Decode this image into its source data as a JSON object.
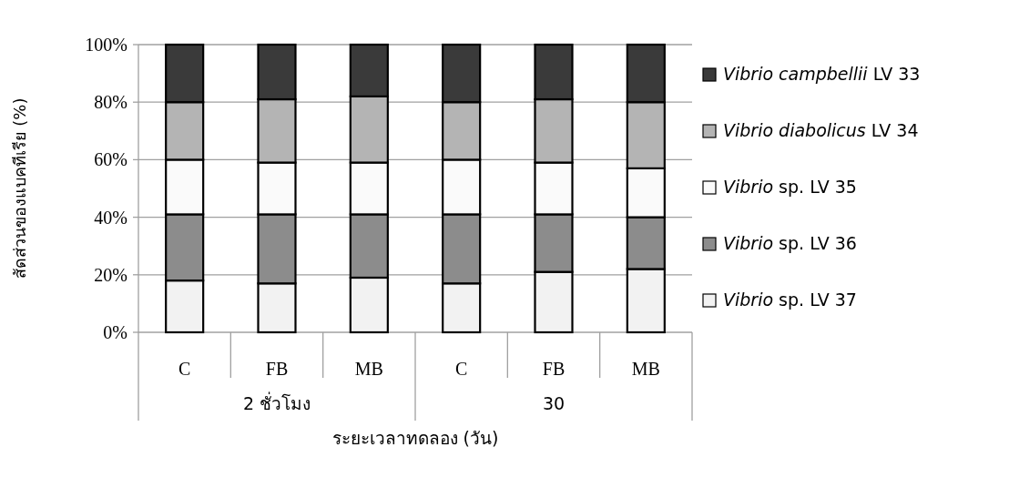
{
  "chart_data": {
    "type": "bar",
    "stacked": true,
    "ylabel": "สัดส่วนของแบคทีเรีย (%)",
    "xlabel": "ระยะเวลาทดลอง (วัน)",
    "categories": [
      "C",
      "FB",
      "MB",
      "C",
      "FB",
      "MB"
    ],
    "annotations": [
      "2 ชั่วโมง",
      "30"
    ],
    "ylim": [
      0,
      100
    ],
    "yticks": [
      {
        "value": 0,
        "label": "0%"
      },
      {
        "value": 20,
        "label": "20%"
      },
      {
        "value": 40,
        "label": "40%"
      },
      {
        "value": 60,
        "label": "60%"
      },
      {
        "value": 80,
        "label": "80%"
      },
      {
        "value": 100,
        "label": "100%"
      }
    ],
    "grid": "y",
    "legend": "right",
    "series": [
      {
        "name": "*Vibrio* sp. LV 37",
        "color": "#f2f2f2",
        "values": [
          18,
          17,
          19,
          17,
          21,
          22
        ]
      },
      {
        "name": "*Vibrio* sp. LV 36",
        "color": "#8c8c8c",
        "values": [
          23,
          24,
          22,
          24,
          20,
          18
        ]
      },
      {
        "name": "*Vibrio* sp. LV 35",
        "color": "#fafafa",
        "values": [
          19,
          18,
          18,
          19,
          18,
          17
        ]
      },
      {
        "name": "*Vibrio diabolicus* LV 34",
        "color": "#b4b4b4",
        "values": [
          20,
          22,
          23,
          20,
          22,
          23
        ]
      },
      {
        "name": "*Vibrio campbellii* LV 33",
        "color": "#3a3a3a",
        "values": [
          20,
          19,
          18,
          20,
          19,
          20
        ]
      }
    ]
  }
}
